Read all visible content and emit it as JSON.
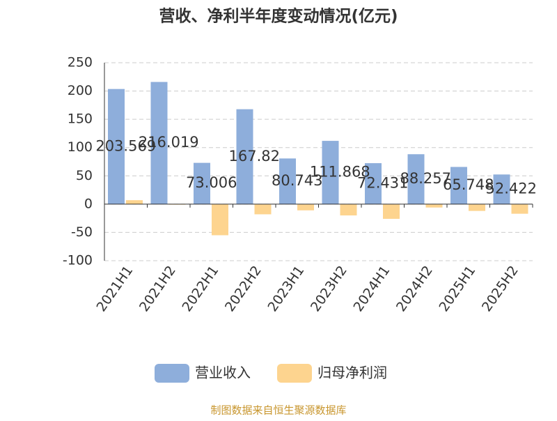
{
  "chart_data": {
    "type": "bar",
    "title": "营收、净利半年度变动情况(亿元)",
    "categories": [
      "2021H1",
      "2021H2",
      "2022H1",
      "2022H2",
      "2023H1",
      "2023H2",
      "2024H1",
      "2024H2",
      "2025H1",
      "2025H2"
    ],
    "series": [
      {
        "name": "营业收入",
        "color": "#8eaedb",
        "values": [
          203.569,
          216.019,
          73.006,
          167.82,
          80.743,
          111.868,
          72.431,
          88.257,
          65.748,
          52.422
        ],
        "show_labels": true
      },
      {
        "name": "归母净利润",
        "color": "#fdd48f",
        "values": [
          7,
          -1,
          -55,
          -18,
          -11,
          -20,
          -26,
          -6,
          -12,
          -17
        ]
      }
    ],
    "ylim": [
      -100,
      250
    ],
    "yticks": [
      -100,
      -50,
      0,
      50,
      100,
      150,
      200,
      250
    ],
    "grid": true,
    "legend": "bottom",
    "source": "制图数据来自恒生聚源数据库"
  }
}
